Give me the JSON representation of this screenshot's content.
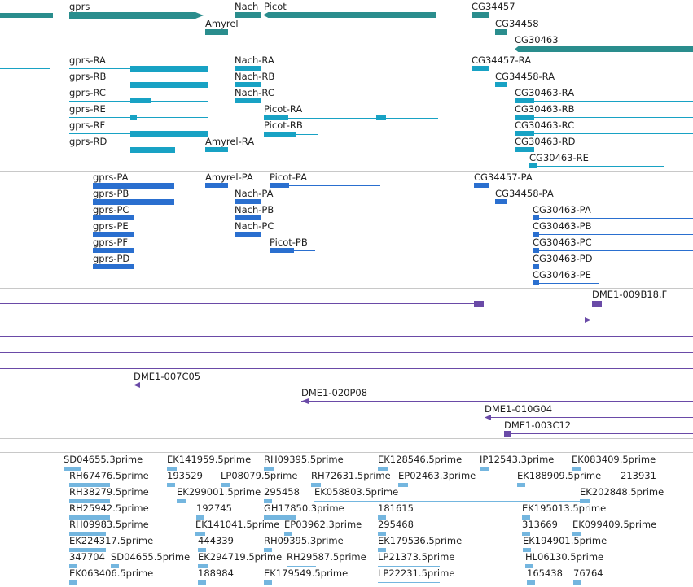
{
  "colors": {
    "gene": "#2a8d8d",
    "mrna": "#18a2c4",
    "cds": "#2a6fcf",
    "tiling": "#6a4aa7",
    "est": "#74b6df",
    "separator": "#c8c8c8"
  },
  "tracks": {
    "genes": {
      "gprs": "gprs",
      "nach": "Nach",
      "picot": "Picot",
      "amyrel": "Amyrel",
      "cg34457": "CG34457",
      "cg34458": "CG34458",
      "cg30463": "CG30463"
    },
    "transcripts": {
      "gprs_ra": "gprs-RA",
      "gprs_rb": "gprs-RB",
      "gprs_rc": "gprs-RC",
      "gprs_re": "gprs-RE",
      "gprs_rf": "gprs-RF",
      "gprs_rd": "gprs-RD",
      "nach_ra": "Nach-RA",
      "nach_rb": "Nach-RB",
      "nach_rc": "Nach-RC",
      "picot_ra": "Picot-RA",
      "picot_rb": "Picot-RB",
      "amyrel_ra": "Amyrel-RA",
      "cg34457_ra": "CG34457-RA",
      "cg34458_ra": "CG34458-RA",
      "cg30463_ra": "CG30463-RA",
      "cg30463_rb": "CG30463-RB",
      "cg30463_rc": "CG30463-RC",
      "cg30463_rd": "CG30463-RD",
      "cg30463_re": "CG30463-RE"
    },
    "proteins": {
      "gprs_pa": "gprs-PA",
      "gprs_pb": "gprs-PB",
      "gprs_pc": "gprs-PC",
      "gprs_pe": "gprs-PE",
      "gprs_pf": "gprs-PF",
      "gprs_pd": "gprs-PD",
      "amyrel_pa": "Amyrel-PA",
      "picot_pa": "Picot-PA",
      "picot_pb": "Picot-PB",
      "nach_pa": "Nach-PA",
      "nach_pb": "Nach-PB",
      "nach_pc": "Nach-PC",
      "cg34457_pa": "CG34457-PA",
      "cg34458_pa": "CG34458-PA",
      "cg30463_pa": "CG30463-PA",
      "cg30463_pb": "CG30463-PB",
      "cg30463_pc": "CG30463-PC",
      "cg30463_pd": "CG30463-PD",
      "cg30463_pe": "CG30463-PE"
    },
    "tiling": {
      "dme1_009b18": "DME1-009B18.F",
      "dme1_007c05": "DME1-007C05",
      "dme1_020p08": "DME1-020P08",
      "dme1_010g04": "DME1-010G04",
      "dme1_003c12": "DME1-003C12"
    },
    "est": {
      "sd04655_3": "SD04655.3prime",
      "ek141959_5": "EK141959.5prime",
      "rh09395_5": "RH09395.5prime",
      "ek128546_5": "EK128546.5prime",
      "ip12543_3": "IP12543.3prime",
      "ek083409_5": "EK083409.5prime",
      "rh67476_5": "RH67476.5prime",
      "n193529": "193529",
      "lp08079_5": "LP08079.5prime",
      "rh72631_5": "RH72631.5prime",
      "ep02463_3": "EP02463.3prime",
      "ek188909_5": "EK188909.5prime",
      "n213931": "213931",
      "rh38279_5": "RH38279.5prime",
      "ek299001_5": "EK299001.5prime",
      "n295458": "295458",
      "ek058803_5": "EK058803.5prime",
      "ek202848_5": "EK202848.5prime",
      "rh25942_5": "RH25942.5prime",
      "n192745": "192745",
      "gh17850_3": "GH17850.3prime",
      "n181615": "181615",
      "ek195013_5": "EK195013.5prime",
      "rh09983_5": "RH09983.5prime",
      "ek141041_5": "EK141041.5prime",
      "ep03962_3": "EP03962.3prime",
      "n295468": "295468",
      "n313669": "313669",
      "ek099409_5": "EK099409.5prime",
      "ek224317_5": "EK224317.5prime",
      "n444339": "444339",
      "rh09395_3": "RH09395.3prime",
      "ek179536_5": "EK179536.5prime",
      "ek194901_5": "EK194901.5prime",
      "n347704": "347704",
      "sd04655_5": "SD04655.5prime",
      "ek294719_5": "EK294719.5prime",
      "rh29587_5": "RH29587.5prime",
      "lp21373_5": "LP21373.5prime",
      "hl06130_5": "HL06130.5prime",
      "ek063406_5": "EK063406.5prime",
      "n188984": "188984",
      "ek179549_5": "EK179549.5prime",
      "lp22231_5": "LP22231.5prime",
      "n165438": "165438",
      "n76764": "76764"
    }
  }
}
